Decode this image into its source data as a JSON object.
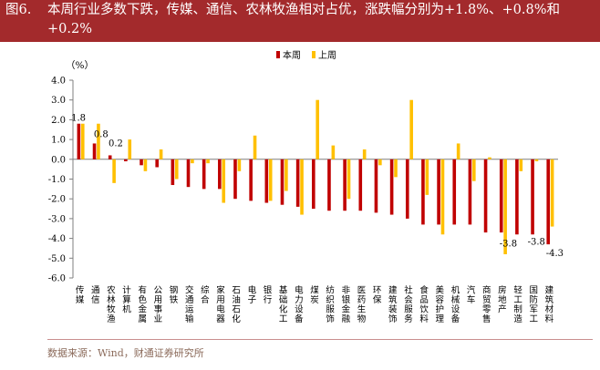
{
  "header": {
    "figure_label": "图6.",
    "title": "本周行业多数下跌，传媒、通信、农林牧渔相对占优，涨跌幅分别为+1.8%、+0.8%和+0.2%"
  },
  "footer": {
    "source": "数据来源：Wind，财通证券研究所"
  },
  "colors": {
    "this_week": "#c00000",
    "last_week": "#ffc000",
    "title_bg": "#a32a2c"
  },
  "chart_data": {
    "type": "bar",
    "ylabel": "（%）",
    "ylim": [
      -6.0,
      4.0
    ],
    "yticks": [
      "4.0",
      "3.0",
      "2.0",
      "1.0",
      "0.0",
      "-1.0",
      "-2.0",
      "-3.0",
      "-4.0",
      "-5.0",
      "-6.0"
    ],
    "categories": [
      "传媒",
      "通信",
      "农林牧渔",
      "计算机",
      "有色金属",
      "公用事业",
      "钢铁",
      "交通运输",
      "综合",
      "家用电器",
      "石油石化",
      "电子",
      "银行",
      "基础化工",
      "电力设备",
      "煤炭",
      "纺织服饰",
      "非银金融",
      "医药生物",
      "环保",
      "建筑装饰",
      "社会服务",
      "食品饮料",
      "美容护理",
      "机械设备",
      "汽车",
      "商贸零售",
      "房地产",
      "轻工制造",
      "国防军工",
      "建筑材料"
    ],
    "series": [
      {
        "name": "本周",
        "values": [
          1.8,
          0.8,
          0.2,
          -0.1,
          -0.3,
          -0.4,
          -1.3,
          -1.4,
          -1.5,
          -1.5,
          -2.0,
          -2.1,
          -2.2,
          -2.3,
          -2.4,
          -2.5,
          -2.6,
          -2.6,
          -2.6,
          -2.7,
          -2.8,
          -3.0,
          -3.3,
          -3.3,
          -3.3,
          -3.3,
          -3.7,
          -3.7,
          -3.8,
          -3.8,
          -4.3
        ]
      },
      {
        "name": "上周",
        "values": [
          1.8,
          1.8,
          -1.2,
          1.0,
          -0.6,
          0.5,
          -1.0,
          -0.2,
          -0.2,
          -2.2,
          -0.6,
          1.2,
          -2.1,
          -1.6,
          -2.8,
          3.0,
          0.7,
          -2.0,
          0.5,
          -0.3,
          -0.9,
          3.0,
          -1.8,
          -3.8,
          0.8,
          -1.1,
          0.1,
          -4.8,
          -0.6,
          -0.1,
          -3.4
        ]
      }
    ],
    "data_labels": [
      {
        "category_index": 0,
        "text": "1.8"
      },
      {
        "category_index": 1,
        "text": "0.8"
      },
      {
        "category_index": 2,
        "text": "0.2"
      },
      {
        "category_index": 28,
        "text": "-3.8"
      },
      {
        "category_index": 29,
        "text": "-3.8"
      },
      {
        "category_index": 30,
        "text": "-4.3"
      }
    ],
    "legend": {
      "position": "top",
      "labels": [
        "本周",
        "上周"
      ]
    }
  }
}
